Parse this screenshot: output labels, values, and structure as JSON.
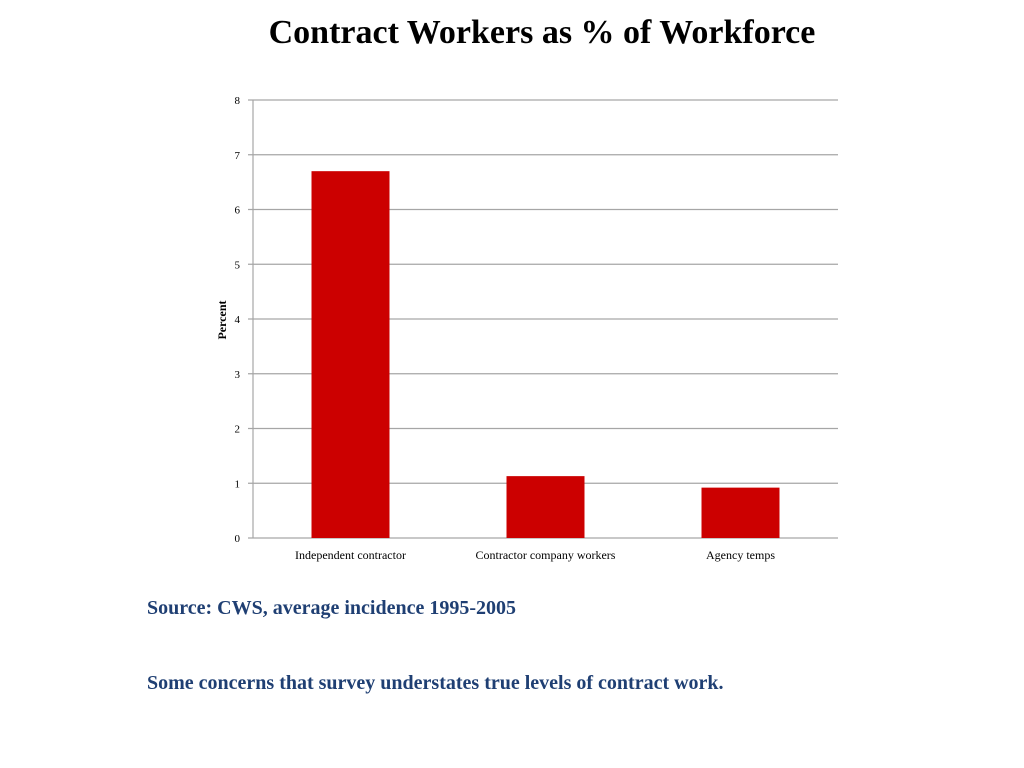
{
  "slide": {
    "title": "Contract Workers as % of Workforce",
    "source_note": "Source:  CWS, average incidence 1995-2005",
    "concern_note": "Some concerns that survey understates true levels of contract work."
  },
  "colors": {
    "bar": "#cc0000",
    "grid": "#a6a6a6",
    "note_text": "#1f3f73"
  },
  "chart_data": {
    "type": "bar",
    "categories": [
      "Independent contractor",
      "Contractor company workers",
      "Agency temps"
    ],
    "values": [
      6.7,
      1.13,
      0.92
    ],
    "ylabel": "Percent",
    "xlabel": "",
    "ylim": [
      0,
      8
    ],
    "yticks": [
      "0",
      "1",
      "2",
      "3",
      "4",
      "5",
      "6",
      "7",
      "8"
    ],
    "grid": true,
    "legend": "none"
  }
}
